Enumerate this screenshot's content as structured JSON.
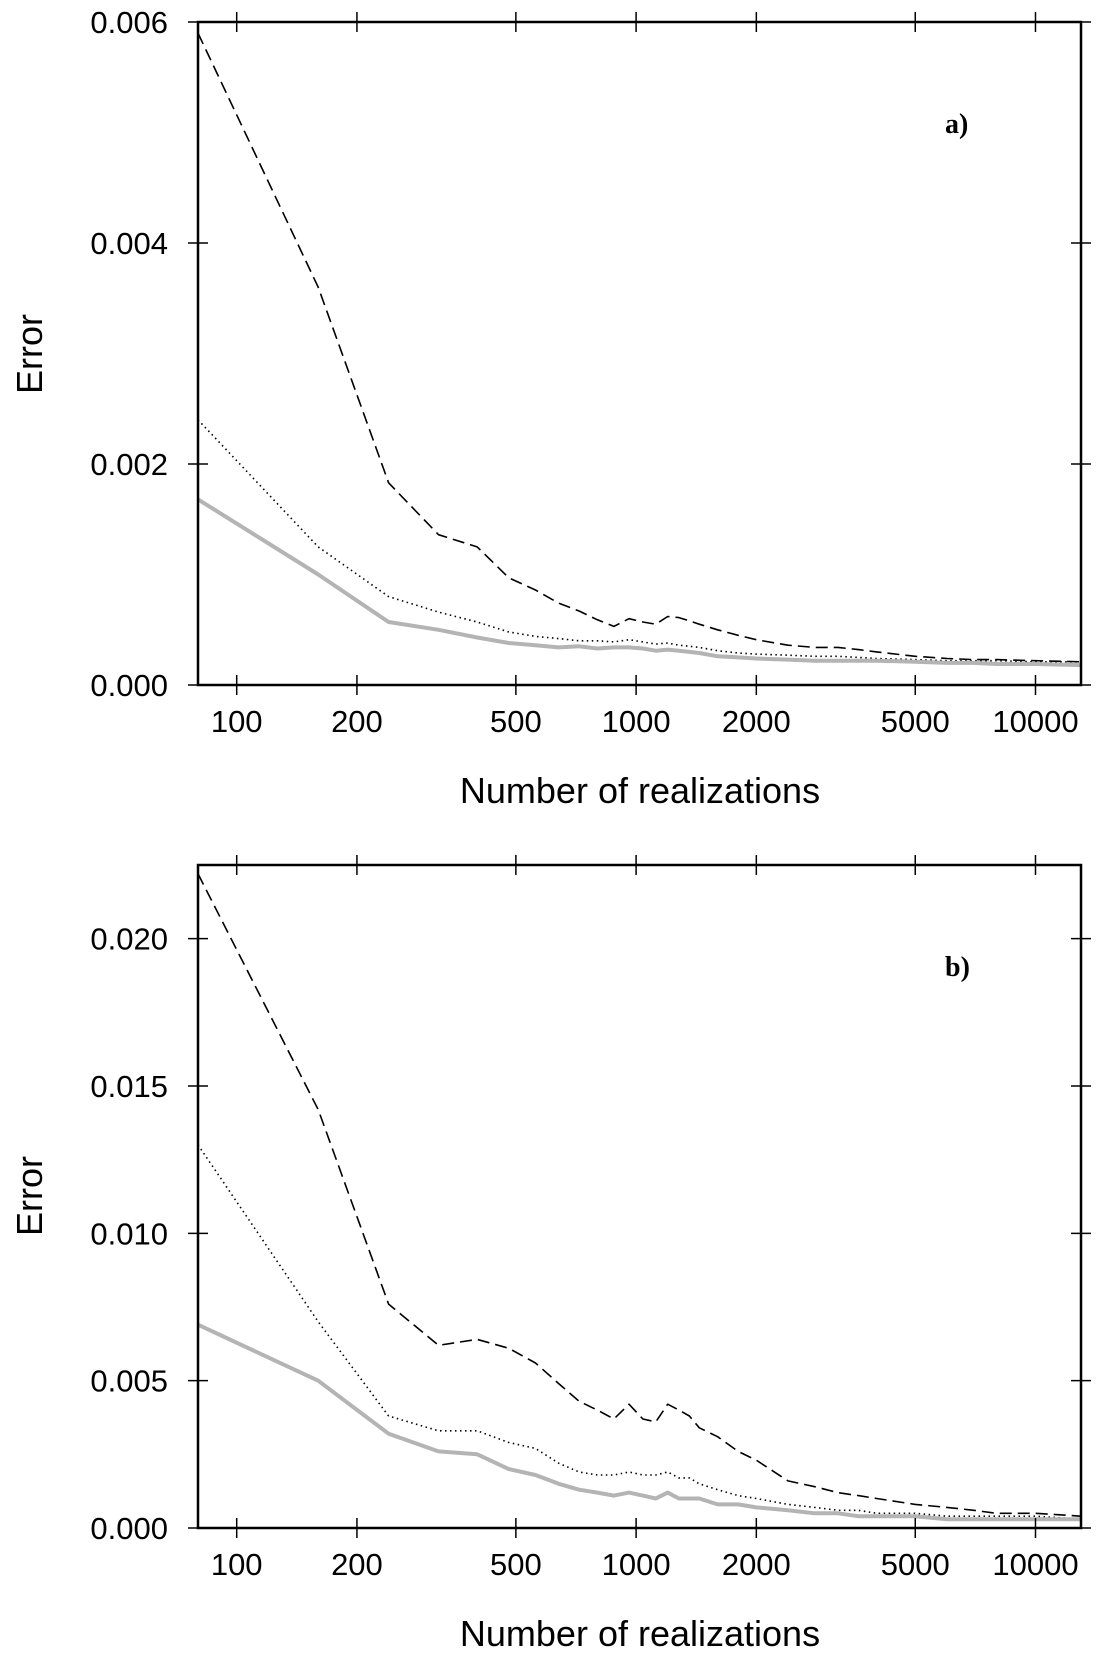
{
  "chart_data": [
    {
      "type": "line",
      "panel_label": "a)",
      "xlabel": "Number of realizations",
      "ylabel": "Error",
      "xscale": "log",
      "xlim": [
        80,
        13000
      ],
      "ylim": [
        0,
        0.006
      ],
      "xticks": [
        {
          "value": 100,
          "label": "100"
        },
        {
          "value": 200,
          "label": "200"
        },
        {
          "value": 500,
          "label": "500"
        },
        {
          "value": 1000,
          "label": "1000"
        },
        {
          "value": 2000,
          "label": "2000"
        },
        {
          "value": 5000,
          "label": "5000"
        },
        {
          "value": 10000,
          "label": "10000"
        }
      ],
      "yticks": [
        {
          "value": 0,
          "label": "0.000"
        },
        {
          "value": 0.002,
          "label": "0.002"
        },
        {
          "value": 0.004,
          "label": "0.004"
        },
        {
          "value": 0.006,
          "label": "0.006"
        }
      ],
      "grid": false,
      "series": [
        {
          "style": "dashed",
          "color": "#000000",
          "x": [
            80,
            160,
            240,
            320,
            400,
            480,
            560,
            640,
            720,
            800,
            880,
            960,
            1040,
            1120,
            1200,
            1280,
            1360,
            1440,
            1600,
            1800,
            2000,
            2400,
            2800,
            3200,
            3600,
            4000,
            5000,
            6000,
            7000,
            8000,
            10000,
            13000
          ],
          "y": [
            0.0059,
            0.0036,
            0.00183,
            0.00136,
            0.00125,
            0.00097,
            0.00086,
            0.00074,
            0.00067,
            0.00059,
            0.00053,
            0.0006,
            0.00057,
            0.00055,
            0.00062,
            0.00061,
            0.00058,
            0.00055,
            0.0005,
            0.00045,
            0.00041,
            0.00036,
            0.00034,
            0.00034,
            0.00032,
            0.0003,
            0.00026,
            0.00024,
            0.00023,
            0.00023,
            0.00022,
            0.00021
          ]
        },
        {
          "style": "dotted",
          "color": "#000000",
          "x": [
            80,
            160,
            240,
            320,
            400,
            480,
            560,
            640,
            720,
            800,
            880,
            960,
            1040,
            1120,
            1200,
            1280,
            1360,
            1440,
            1600,
            1800,
            2000,
            2400,
            2800,
            3200,
            3600,
            4000,
            5000,
            6000,
            7000,
            8000,
            10000,
            13000
          ],
          "y": [
            0.0024,
            0.00125,
            0.0008,
            0.00066,
            0.00057,
            0.00048,
            0.00044,
            0.00042,
            0.0004,
            0.0004,
            0.00039,
            0.00041,
            0.00039,
            0.00037,
            0.00038,
            0.00036,
            0.00035,
            0.00034,
            0.00031,
            0.00029,
            0.00028,
            0.00027,
            0.00026,
            0.00026,
            0.00025,
            0.00024,
            0.00023,
            0.00022,
            0.00022,
            0.00022,
            0.00021,
            0.00021
          ]
        },
        {
          "style": "solid",
          "color": "#b4b4b4",
          "x": [
            80,
            160,
            240,
            320,
            400,
            480,
            560,
            640,
            720,
            800,
            880,
            960,
            1040,
            1120,
            1200,
            1280,
            1360,
            1440,
            1600,
            1800,
            2000,
            2400,
            2800,
            3200,
            3600,
            4000,
            5000,
            6000,
            7000,
            8000,
            10000,
            13000
          ],
          "y": [
            0.00168,
            0.001,
            0.00057,
            0.0005,
            0.00043,
            0.00038,
            0.00036,
            0.00034,
            0.00035,
            0.00033,
            0.00034,
            0.00034,
            0.00033,
            0.00031,
            0.00032,
            0.00031,
            0.0003,
            0.00029,
            0.00026,
            0.00025,
            0.00024,
            0.00023,
            0.00022,
            0.00022,
            0.00022,
            0.00022,
            0.00021,
            0.0002,
            0.0002,
            0.00019,
            0.00019,
            0.00018
          ]
        }
      ]
    },
    {
      "type": "line",
      "panel_label": "b)",
      "xlabel": "Number of realizations",
      "ylabel": "Error",
      "xscale": "log",
      "xlim": [
        80,
        13000
      ],
      "ylim": [
        0,
        0.0225
      ],
      "xticks": [
        {
          "value": 100,
          "label": "100"
        },
        {
          "value": 200,
          "label": "200"
        },
        {
          "value": 500,
          "label": "500"
        },
        {
          "value": 1000,
          "label": "1000"
        },
        {
          "value": 2000,
          "label": "2000"
        },
        {
          "value": 5000,
          "label": "5000"
        },
        {
          "value": 10000,
          "label": "10000"
        }
      ],
      "yticks": [
        {
          "value": 0,
          "label": "0.000"
        },
        {
          "value": 0.005,
          "label": "0.005"
        },
        {
          "value": 0.01,
          "label": "0.010"
        },
        {
          "value": 0.015,
          "label": "0.015"
        },
        {
          "value": 0.02,
          "label": "0.020"
        }
      ],
      "grid": false,
      "series": [
        {
          "style": "dashed",
          "color": "#000000",
          "x": [
            80,
            160,
            240,
            320,
            400,
            480,
            560,
            640,
            720,
            800,
            880,
            960,
            1040,
            1120,
            1200,
            1280,
            1360,
            1440,
            1600,
            1800,
            2000,
            2400,
            2800,
            3200,
            3600,
            4000,
            5000,
            6000,
            7000,
            8000,
            10000,
            13000
          ],
          "y": [
            0.0222,
            0.0142,
            0.0076,
            0.0062,
            0.0064,
            0.0061,
            0.0056,
            0.0049,
            0.0043,
            0.004,
            0.0037,
            0.0042,
            0.0037,
            0.0036,
            0.0042,
            0.004,
            0.0038,
            0.0034,
            0.0031,
            0.0026,
            0.0023,
            0.0016,
            0.0014,
            0.0012,
            0.0011,
            0.001,
            0.0008,
            0.0007,
            0.0006,
            0.0005,
            0.0005,
            0.0004
          ]
        },
        {
          "style": "dotted",
          "color": "#000000",
          "x": [
            80,
            160,
            240,
            320,
            400,
            480,
            560,
            640,
            720,
            800,
            880,
            960,
            1040,
            1120,
            1200,
            1280,
            1360,
            1440,
            1600,
            1800,
            2000,
            2400,
            2800,
            3200,
            3600,
            4000,
            5000,
            6000,
            7000,
            8000,
            10000,
            13000
          ],
          "y": [
            0.013,
            0.007,
            0.0038,
            0.0033,
            0.0033,
            0.0029,
            0.0027,
            0.0022,
            0.0019,
            0.0018,
            0.0018,
            0.0019,
            0.0018,
            0.0018,
            0.0019,
            0.0017,
            0.0017,
            0.0015,
            0.0013,
            0.0011,
            0.001,
            0.0008,
            0.0007,
            0.0006,
            0.0006,
            0.0005,
            0.0005,
            0.0004,
            0.0004,
            0.0004,
            0.0004,
            0.0003
          ]
        },
        {
          "style": "solid",
          "color": "#b4b4b4",
          "x": [
            80,
            160,
            240,
            320,
            400,
            480,
            560,
            640,
            720,
            800,
            880,
            960,
            1040,
            1120,
            1200,
            1280,
            1360,
            1440,
            1600,
            1800,
            2000,
            2400,
            2800,
            3200,
            3600,
            4000,
            5000,
            6000,
            7000,
            8000,
            10000,
            13000
          ],
          "y": [
            0.0069,
            0.005,
            0.0032,
            0.0026,
            0.0025,
            0.002,
            0.0018,
            0.0015,
            0.0013,
            0.0012,
            0.0011,
            0.0012,
            0.0011,
            0.001,
            0.0012,
            0.001,
            0.001,
            0.001,
            0.0008,
            0.0008,
            0.0007,
            0.0006,
            0.0005,
            0.0005,
            0.0004,
            0.0004,
            0.0004,
            0.0003,
            0.0003,
            0.0003,
            0.0003,
            0.0003
          ]
        }
      ]
    }
  ]
}
